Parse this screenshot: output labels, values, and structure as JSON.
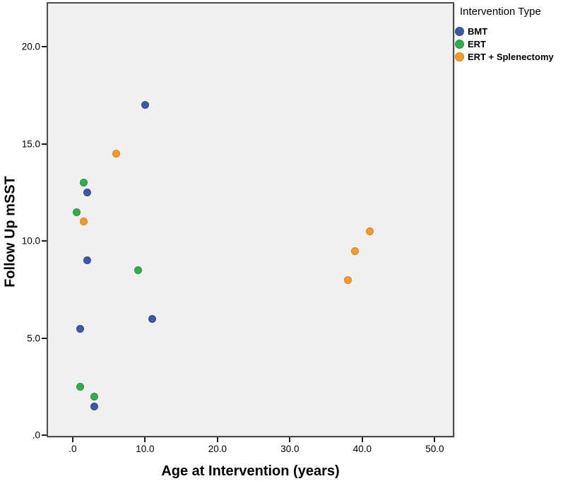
{
  "chart_data": {
    "type": "scatter",
    "xlabel": "Age at Intervention (years)",
    "ylabel": "Follow Up mSST",
    "legend_title": "Intervention Type",
    "legend_position": "outside-top-right",
    "grid": false,
    "plot_background": "#F0F0F0",
    "frame_color": "#4D4D4D",
    "xlim": [
      -3.6,
      52.7
    ],
    "ylim": [
      -0.1,
      22.3
    ],
    "x_ticks": [
      {
        "value": 0,
        "label": ".0"
      },
      {
        "value": 10,
        "label": "10.0"
      },
      {
        "value": 20,
        "label": "20.0"
      },
      {
        "value": 30,
        "label": "30.0"
      },
      {
        "value": 40,
        "label": "40.0"
      },
      {
        "value": 50,
        "label": "50.0"
      }
    ],
    "y_ticks": [
      {
        "value": 0,
        "label": ".0"
      },
      {
        "value": 5,
        "label": "5.0"
      },
      {
        "value": 10,
        "label": "10.0"
      },
      {
        "value": 15,
        "label": "15.0"
      },
      {
        "value": 20,
        "label": "20.0"
      }
    ],
    "series": [
      {
        "name": "BMT",
        "color": "#3C59A8",
        "points": [
          [
            10,
            17
          ],
          [
            2,
            12.5
          ],
          [
            2,
            9
          ],
          [
            1,
            5.5
          ],
          [
            11,
            6
          ],
          [
            3,
            1.5
          ]
        ]
      },
      {
        "name": "ERT",
        "color": "#2FAE49",
        "points": [
          [
            1.5,
            13
          ],
          [
            0.5,
            11.5
          ],
          [
            9,
            8.5
          ],
          [
            1,
            2.5
          ],
          [
            3,
            2
          ]
        ]
      },
      {
        "name": "ERT + Splenectomy",
        "color": "#F79B28",
        "points": [
          [
            6,
            14.5
          ],
          [
            1.5,
            11
          ],
          [
            41,
            10.5
          ],
          [
            39,
            9.5
          ],
          [
            38,
            8
          ]
        ]
      }
    ]
  }
}
